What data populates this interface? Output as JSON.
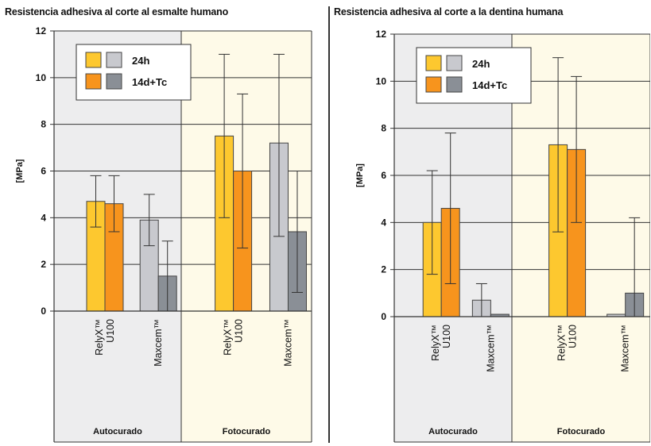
{
  "chart_data": [
    {
      "type": "bar",
      "title": "Resistencia adhesiva al corte al esmalte humano",
      "ylabel": "[MPa]",
      "ylim": [
        0,
        12
      ],
      "yticks": [
        "0",
        "2",
        "4",
        "6",
        "8",
        "10",
        "12"
      ],
      "grid": true,
      "legend_position": "top-left",
      "legend": [
        {
          "label": "24h",
          "colors": [
            "#FDC82F",
            "#C8C9CE"
          ]
        },
        {
          "label": "14d+Tc",
          "colors": [
            "#F7941D",
            "#8A8F96"
          ]
        }
      ],
      "sections": [
        {
          "label": "Autocurado",
          "background": "#EDEDEE"
        },
        {
          "label": "Fotocurado",
          "background": "#FEFAE8"
        }
      ],
      "groups": [
        {
          "label_lines": [
            "RelyX™",
            "U100"
          ],
          "section": 0,
          "bars": [
            {
              "value": 4.7,
              "err_low": 3.6,
              "err_high": 5.8,
              "color": "#FDC82F"
            },
            {
              "value": 4.6,
              "err_low": 3.4,
              "err_high": 5.8,
              "color": "#F7941D"
            }
          ]
        },
        {
          "label_lines": [
            "Maxcem™"
          ],
          "section": 0,
          "bars": [
            {
              "value": 3.9,
              "err_low": 2.8,
              "err_high": 5.0,
              "color": "#C8C9CE"
            },
            {
              "value": 1.5,
              "err_low": 0.0,
              "err_high": 3.0,
              "color": "#8A8F96"
            }
          ]
        },
        {
          "label_lines": [
            "RelyX™",
            "U100"
          ],
          "section": 1,
          "bars": [
            {
              "value": 7.5,
              "err_low": 4.0,
              "err_high": 11.0,
              "color": "#FDC82F"
            },
            {
              "value": 6.0,
              "err_low": 2.7,
              "err_high": 9.3,
              "color": "#F7941D"
            }
          ]
        },
        {
          "label_lines": [
            "Maxcem™"
          ],
          "section": 1,
          "bars": [
            {
              "value": 7.2,
              "err_low": 3.2,
              "err_high": 11.0,
              "color": "#C8C9CE"
            },
            {
              "value": 3.4,
              "err_low": 0.8,
              "err_high": 6.0,
              "color": "#8A8F96"
            }
          ]
        }
      ]
    },
    {
      "type": "bar",
      "title": "Resistencia adhesiva al corte a la dentina humana",
      "ylabel": "[MPa]",
      "ylim": [
        0,
        12
      ],
      "yticks": [
        "0",
        "2",
        "4",
        "6",
        "8",
        "10",
        "12"
      ],
      "grid": true,
      "legend_position": "top-left",
      "legend": [
        {
          "label": "24h",
          "colors": [
            "#FDC82F",
            "#C8C9CE"
          ]
        },
        {
          "label": "14d+Tc",
          "colors": [
            "#F7941D",
            "#8A8F96"
          ]
        }
      ],
      "sections": [
        {
          "label": "Autocurado",
          "background": "#EDEDEE"
        },
        {
          "label": "Fotocurado",
          "background": "#FEFAE8"
        }
      ],
      "groups": [
        {
          "label_lines": [
            "RelyX™",
            "U100"
          ],
          "section": 0,
          "bars": [
            {
              "value": 4.0,
              "err_low": 1.8,
              "err_high": 6.2,
              "color": "#FDC82F"
            },
            {
              "value": 4.6,
              "err_low": 1.4,
              "err_high": 7.8,
              "color": "#F7941D"
            }
          ]
        },
        {
          "label_lines": [
            "Maxcem™"
          ],
          "section": 0,
          "bars": [
            {
              "value": 0.7,
              "err_low": 0.0,
              "err_high": 1.4,
              "color": "#C8C9CE"
            },
            {
              "value": 0.1,
              "err_low": null,
              "err_high": null,
              "color": "#8A8F96"
            }
          ]
        },
        {
          "label_lines": [
            "RelyX™",
            "U100"
          ],
          "section": 1,
          "bars": [
            {
              "value": 7.3,
              "err_low": 3.6,
              "err_high": 11.0,
              "color": "#FDC82F"
            },
            {
              "value": 7.1,
              "err_low": 4.0,
              "err_high": 10.2,
              "color": "#F7941D"
            }
          ]
        },
        {
          "label_lines": [
            "Maxcem™"
          ],
          "section": 1,
          "bars": [
            {
              "value": 0.1,
              "err_low": null,
              "err_high": null,
              "color": "#C8C9CE"
            },
            {
              "value": 1.0,
              "err_low": 0.0,
              "err_high": 4.2,
              "color": "#8A8F96"
            }
          ]
        }
      ]
    }
  ]
}
